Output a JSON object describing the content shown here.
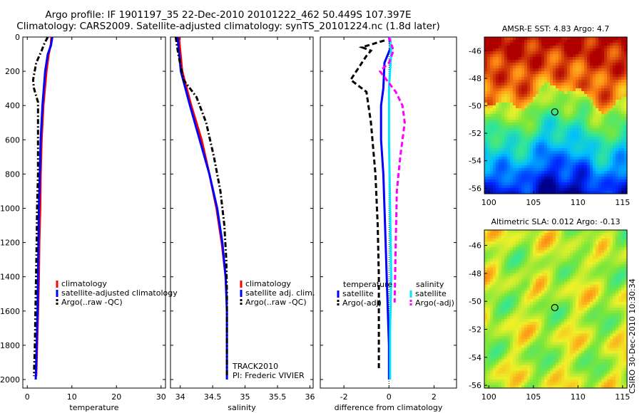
{
  "header": {
    "line1": "Argo profile: IF 1901197_35 22-Dec-2010 20101222_462 50.449S 107.397E",
    "line2": "Climatology: CARS2009. Satellite-adjusted climatology: synTS_20101224.nc (1.8d later)"
  },
  "side_label": "CSIRO 30-Dec-2010 10:30:34",
  "colors": {
    "climatology": "#ff0000",
    "satellite": "#0000ff",
    "argo": "#000000",
    "sat_salinity": "#00e5ff",
    "argo_salinity": "#ff00ff"
  },
  "chart_data": [
    {
      "type": "line",
      "id": "temp",
      "xlabel": "temperature",
      "xlim": [
        -1,
        31
      ],
      "ylim": [
        2050,
        0
      ],
      "xticks": [
        0,
        10,
        20,
        30
      ],
      "yticks": [
        0,
        200,
        400,
        600,
        800,
        1000,
        1200,
        1400,
        1600,
        1800,
        2000
      ],
      "legend": [
        "climatology",
        "satellite-adjusted climatology",
        "Argo(..raw -QC)"
      ],
      "series": [
        {
          "name": "climatology",
          "color": "#ff0000",
          "dash": "",
          "points": [
            [
              5.4,
              0
            ],
            [
              5.3,
              40
            ],
            [
              4.8,
              100
            ],
            [
              4.3,
              200
            ],
            [
              3.6,
              400
            ],
            [
              3.2,
              600
            ],
            [
              3.0,
              800
            ],
            [
              2.9,
              1000
            ],
            [
              2.7,
              1200
            ],
            [
              2.6,
              1400
            ],
            [
              2.4,
              1600
            ],
            [
              2.2,
              1800
            ],
            [
              2.0,
              1980
            ]
          ]
        },
        {
          "name": "satellite",
          "color": "#0000ff",
          "dash": "",
          "points": [
            [
              5.6,
              0
            ],
            [
              5.3,
              50
            ],
            [
              4.6,
              100
            ],
            [
              4.0,
              200
            ],
            [
              3.4,
              400
            ],
            [
              3.0,
              600
            ],
            [
              2.8,
              800
            ],
            [
              2.6,
              1000
            ],
            [
              2.5,
              1200
            ],
            [
              2.4,
              1400
            ],
            [
              2.3,
              1600
            ],
            [
              2.1,
              1800
            ],
            [
              1.9,
              2000
            ]
          ]
        },
        {
          "name": "argo",
          "color": "#000000",
          "dash": "7,3,2,3",
          "points": [
            [
              4.6,
              0
            ],
            [
              3.8,
              40
            ],
            [
              3.2,
              80
            ],
            [
              2.0,
              150
            ],
            [
              1.3,
              250
            ],
            [
              1.5,
              300
            ],
            [
              2.4,
              380
            ],
            [
              2.4,
              500
            ],
            [
              2.4,
              800
            ],
            [
              2.2,
              1000
            ],
            [
              2.1,
              1200
            ],
            [
              1.9,
              1500
            ],
            [
              1.7,
              1800
            ],
            [
              1.5,
              1980
            ]
          ]
        }
      ]
    },
    {
      "type": "line",
      "id": "sal",
      "xlabel": "salinity",
      "xlim": [
        33.85,
        36.05
      ],
      "ylim": [
        2050,
        0
      ],
      "xticks": [
        34,
        34.5,
        35,
        35.5,
        36
      ],
      "yticks": [
        0,
        200,
        400,
        600,
        800,
        1000,
        1200,
        1400,
        1600,
        1800,
        2000
      ],
      "legend": [
        "climatology",
        "satellite adj. clim.",
        "Argo(..raw -QC)"
      ],
      "annotations": [
        "TRACK2010",
        "PI: Frederic VIVIER"
      ],
      "series": [
        {
          "name": "climatology",
          "color": "#ff0000",
          "dash": "",
          "points": [
            [
              33.98,
              0
            ],
            [
              34.03,
              200
            ],
            [
              34.17,
              400
            ],
            [
              34.33,
              600
            ],
            [
              34.45,
              800
            ],
            [
              34.56,
              1000
            ],
            [
              34.64,
              1200
            ],
            [
              34.7,
              1400
            ],
            [
              34.72,
              1550
            ]
          ]
        },
        {
          "name": "satellite",
          "color": "#0000ff",
          "dash": "",
          "points": [
            [
              33.96,
              0
            ],
            [
              34.01,
              200
            ],
            [
              34.15,
              400
            ],
            [
              34.3,
              600
            ],
            [
              34.45,
              800
            ],
            [
              34.57,
              1000
            ],
            [
              34.65,
              1200
            ],
            [
              34.7,
              1400
            ],
            [
              34.72,
              1600
            ],
            [
              34.72,
              1800
            ],
            [
              34.72,
              2000
            ]
          ]
        },
        {
          "name": "argo",
          "color": "#000000",
          "dash": "7,3,2,3",
          "points": [
            [
              33.93,
              0
            ],
            [
              33.97,
              100
            ],
            [
              34.05,
              250
            ],
            [
              34.25,
              350
            ],
            [
              34.4,
              500
            ],
            [
              34.52,
              700
            ],
            [
              34.62,
              900
            ],
            [
              34.68,
              1100
            ],
            [
              34.71,
              1300
            ],
            [
              34.72,
              1500
            ],
            [
              34.72,
              1800
            ],
            [
              34.72,
              1980
            ]
          ]
        }
      ]
    },
    {
      "type": "line",
      "id": "diff",
      "xlabel": "difference from climatology",
      "xlim": [
        -3.05,
        3.0
      ],
      "ylim": [
        2050,
        0
      ],
      "xticks": [
        -2,
        0,
        2
      ],
      "yticks": [
        0,
        200,
        400,
        600,
        800,
        1000,
        1200,
        1400,
        1600,
        1800,
        2000
      ],
      "legend_temperature": {
        "title": "temperature",
        "items": [
          "satellite",
          "Argo(-adj)"
        ]
      },
      "legend_salinity": {
        "title": "salinity",
        "items": [
          "satellite",
          "Argo(-adj)"
        ]
      },
      "series": [
        {
          "name": "temperature satellite",
          "color": "#0000ff",
          "dash": "",
          "points": [
            [
              0,
              0
            ],
            [
              0.08,
              60
            ],
            [
              -0.2,
              150
            ],
            [
              -0.25,
              300
            ],
            [
              -0.35,
              400
            ],
            [
              -0.35,
              600
            ],
            [
              -0.25,
              800
            ],
            [
              -0.2,
              1000
            ],
            [
              -0.15,
              1200
            ],
            [
              -0.1,
              1400
            ],
            [
              -0.05,
              1600
            ],
            [
              0,
              1800
            ],
            [
              0,
              2000
            ]
          ]
        },
        {
          "name": "temperature Argo(-adj)",
          "color": "#000000",
          "dash": "7,4",
          "points": [
            [
              -0.2,
              20
            ],
            [
              -1.2,
              60
            ],
            [
              -0.8,
              80
            ],
            [
              -1.0,
              110
            ],
            [
              -1.7,
              250
            ],
            [
              -1.0,
              320
            ],
            [
              -0.8,
              500
            ],
            [
              -0.6,
              800
            ],
            [
              -0.5,
              1100
            ],
            [
              -0.45,
              1400
            ],
            [
              -0.45,
              1700
            ],
            [
              -0.45,
              1950
            ]
          ]
        },
        {
          "name": "salinity satellite",
          "color": "#00e5ff",
          "dash": "",
          "points": [
            [
              0.05,
              0
            ],
            [
              0.1,
              100
            ],
            [
              0.0,
              300
            ],
            [
              0.0,
              600
            ],
            [
              0.05,
              1000
            ],
            [
              0.1,
              1400
            ],
            [
              0.05,
              1700
            ],
            [
              0.05,
              2000
            ]
          ]
        },
        {
          "name": "salinity Argo(-adj)",
          "color": "#ff00ff",
          "dash": "7,4",
          "points": [
            [
              0.0,
              0
            ],
            [
              0.2,
              80
            ],
            [
              0.0,
              150
            ],
            [
              -0.4,
              200
            ],
            [
              0.3,
              320
            ],
            [
              0.6,
              400
            ],
            [
              0.7,
              500
            ],
            [
              0.6,
              600
            ],
            [
              0.5,
              700
            ],
            [
              0.35,
              900
            ],
            [
              0.3,
              1200
            ],
            [
              0.25,
              1550
            ]
          ]
        }
      ]
    },
    {
      "type": "heatmap",
      "id": "sst",
      "title": "AMSR-E SST: 4.83 Argo: 4.7",
      "xlim": [
        99.5,
        115.5
      ],
      "ylim": [
        -56.4,
        -45
      ],
      "xticks": [
        100,
        105,
        110,
        115
      ],
      "yticks": [
        -46,
        -48,
        -50,
        -52,
        -54,
        -56
      ],
      "marker": {
        "lon": 107.4,
        "lat": -50.45
      }
    },
    {
      "type": "heatmap",
      "id": "sla",
      "title": "Altimetric SLA: 0.012 Argo: -0.13",
      "xlim": [
        99.5,
        115.5
      ],
      "ylim": [
        -56.2,
        -44.9
      ],
      "xticks": [
        100,
        105,
        110,
        115
      ],
      "yticks": [
        -46,
        -48,
        -50,
        -52,
        -54,
        -56
      ],
      "marker": {
        "lon": 107.4,
        "lat": -50.45
      }
    }
  ]
}
